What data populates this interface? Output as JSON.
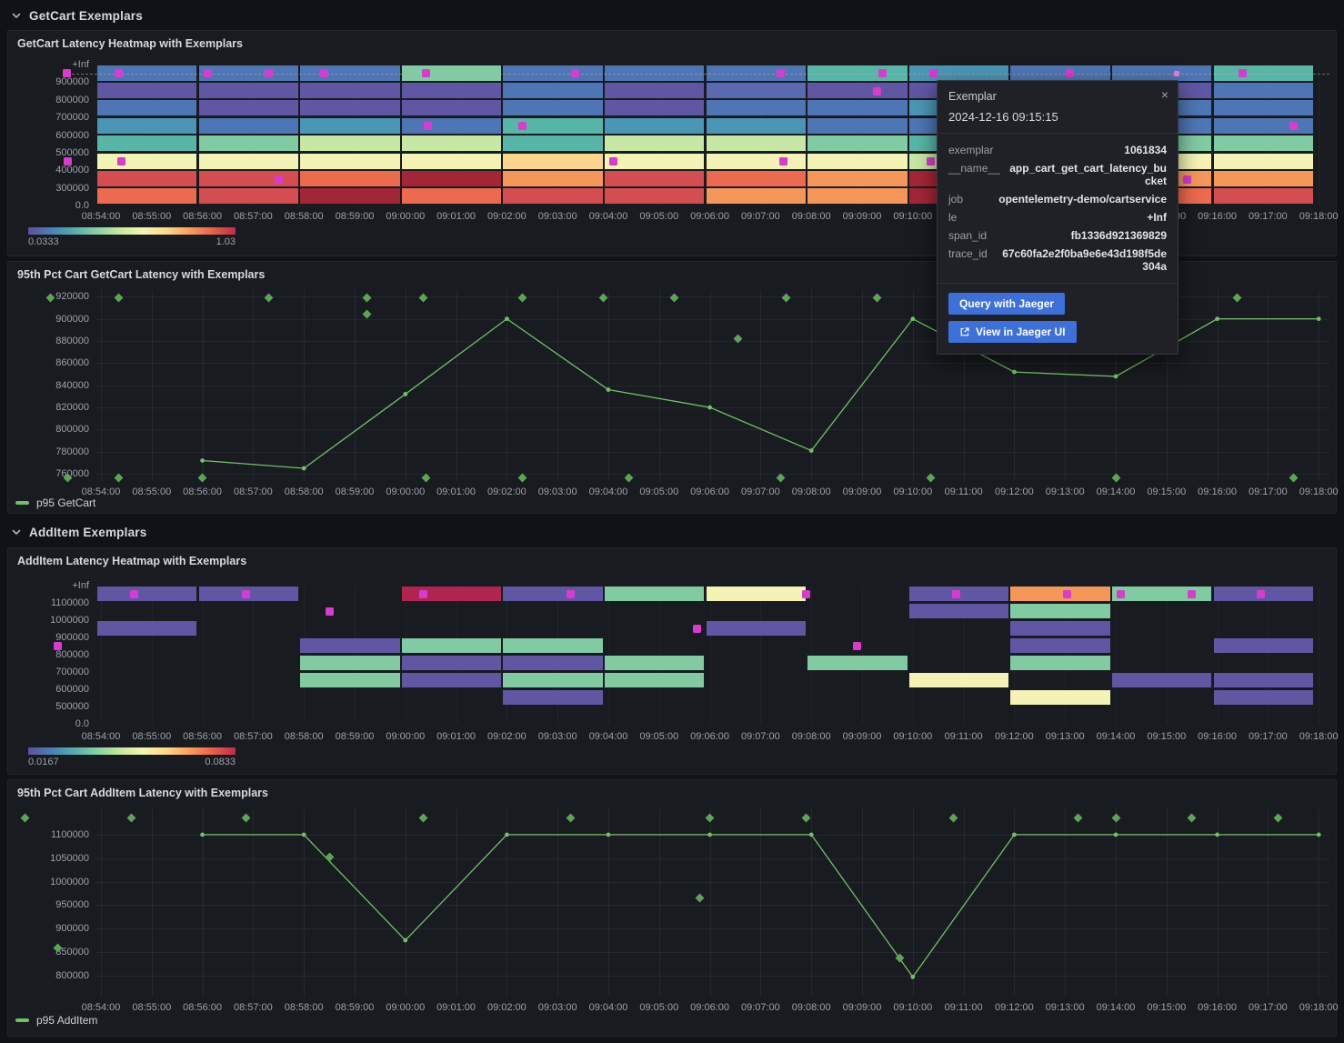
{
  "sections": [
    {
      "title": "GetCart Exemplars"
    },
    {
      "title": "AddItem Exemplars"
    }
  ],
  "tooltip": {
    "header": "Exemplar",
    "time": "2024-12-16 09:15:15",
    "close_label": "×",
    "fields": [
      {
        "label": "exemplar",
        "value": "1061834"
      },
      {
        "label": "__name__",
        "value": "app_cart_get_cart_latency_bucket"
      },
      {
        "label": "job",
        "value": "opentelemetry-demo/cartservice"
      },
      {
        "label": "le",
        "value": "+Inf"
      },
      {
        "label": "span_id",
        "value": "fb1336d921369829"
      },
      {
        "label": "trace_id",
        "value": "67c60fa2e2f0ba9e6e43d198f5de304a"
      }
    ],
    "buttons": [
      {
        "label": "Query with Jaeger",
        "icon": null
      },
      {
        "label": "View in Jaeger UI",
        "icon": "external-link"
      }
    ]
  },
  "palette": {
    "P": "#6057a4",
    "BP": "#5b68b2",
    "B": "#4e76b5",
    "TB": "#4b96b5",
    "T": "#58b6a8",
    "G": "#80cba2",
    "LG": "#c6e8a4",
    "PY": "#f4f3b6",
    "PC": "#fbd58c",
    "O": "#f6975a",
    "RO": "#ec6a4e",
    "R": "#d44d50",
    "DR": "#a32638",
    "CR": "#b22450",
    "exemplar": "#d93bce",
    "line_green": "#73bf69",
    "diamond_green": "#5ca554",
    "button_blue": "#3d71d9"
  },
  "chart_data": [
    {
      "type": "heatmap",
      "title": "GetCart Latency Heatmap with Exemplars",
      "x_tick_start": "08:54:00",
      "x_tick_count": 25,
      "x_tick_step_s": 60,
      "bucket_minutes": 2,
      "y_labels": [
        "+Inf",
        "900000",
        "800000",
        "700000",
        "600000",
        "500000",
        "400000",
        "300000",
        "0.0"
      ],
      "colorbar": {
        "min": "0.0333",
        "max": "1.03"
      },
      "dashed_line_row": 0,
      "columns": [
        {
          "start": "08:54",
          "cells": [
            "B",
            "P",
            "B",
            "TB",
            "T",
            "PY",
            "R",
            "RO"
          ]
        },
        {
          "start": "08:56",
          "cells": [
            "B",
            "P",
            "P",
            "B",
            "G",
            "PY",
            "R",
            "R"
          ]
        },
        {
          "start": "08:58",
          "cells": [
            "B",
            "P",
            "P",
            "TB",
            "LG",
            "PY",
            "RO",
            "DR"
          ]
        },
        {
          "start": "09:00",
          "cells": [
            "G",
            "P",
            "P",
            "B",
            "LG",
            "PY",
            "DR",
            "RO"
          ]
        },
        {
          "start": "09:02",
          "cells": [
            "B",
            "B",
            "B",
            "T",
            "T",
            "PC",
            "O",
            "R"
          ]
        },
        {
          "start": "09:04",
          "cells": [
            "B",
            "P",
            "P",
            "TB",
            "LG",
            "PY",
            "R",
            "R"
          ]
        },
        {
          "start": "09:06",
          "cells": [
            "B",
            "BP",
            "B",
            "TB",
            "LG",
            "PY",
            "RO",
            "O"
          ]
        },
        {
          "start": "09:08",
          "cells": [
            "T",
            "P",
            "B",
            "B",
            "G",
            "PY",
            "O",
            "O"
          ]
        },
        {
          "start": "09:10",
          "cells": [
            "TB",
            "P",
            "TB",
            "B",
            "T",
            "LG",
            "DR",
            "DR"
          ]
        },
        {
          "start": "09:12",
          "cells": [
            "B",
            "P",
            "B",
            "B",
            "T",
            "PY",
            "R",
            "R"
          ]
        },
        {
          "start": "09:14",
          "cells": [
            "B",
            "P",
            "B",
            "B",
            "G",
            "PY",
            "O",
            "RO"
          ]
        },
        {
          "start": "09:16",
          "cells": [
            "T",
            "B",
            "B",
            "B",
            "G",
            "PY",
            "O",
            "R"
          ]
        }
      ],
      "exemplars": [
        {
          "m": -0.68,
          "row": 0
        },
        {
          "m": 0.35,
          "row": 0
        },
        {
          "m": 2.1,
          "row": 0
        },
        {
          "m": 3.3,
          "row": 0
        },
        {
          "m": 4.4,
          "row": 0
        },
        {
          "m": 6.4,
          "row": 0
        },
        {
          "m": 9.35,
          "row": 0
        },
        {
          "m": 13.4,
          "row": 0
        },
        {
          "m": 15.4,
          "row": 0
        },
        {
          "m": 16.4,
          "row": 0
        },
        {
          "m": 19.1,
          "row": 0
        },
        {
          "m": 21.2,
          "row": 0,
          "small": true
        },
        {
          "m": 22.5,
          "row": 0
        },
        {
          "m": 15.3,
          "row": 1
        },
        {
          "m": 6.45,
          "row": 3
        },
        {
          "m": 8.3,
          "row": 3
        },
        {
          "m": 23.5,
          "row": 3
        },
        {
          "m": -0.65,
          "row": 5
        },
        {
          "m": 0.4,
          "row": 5
        },
        {
          "m": 10.1,
          "row": 5
        },
        {
          "m": 13.45,
          "row": 5
        },
        {
          "m": 16.35,
          "row": 5
        },
        {
          "m": 3.5,
          "row": 6
        },
        {
          "m": 21.4,
          "row": 6
        }
      ]
    },
    {
      "type": "line",
      "title": "95th Pct Cart GetCart Latency with Exemplars",
      "x_tick_start": "08:54:00",
      "x_tick_count": 25,
      "x_tick_step_s": 60,
      "y_ticks": [
        760000,
        780000,
        800000,
        820000,
        840000,
        860000,
        880000,
        900000,
        920000
      ],
      "ylim": [
        753500,
        926000
      ],
      "series": [
        {
          "name": "p95 GetCart",
          "color": "#73bf69",
          "points": [
            {
              "m": 2,
              "v": 772000
            },
            {
              "m": 4,
              "v": 765000
            },
            {
              "m": 6,
              "v": 832000
            },
            {
              "m": 8,
              "v": 900000
            },
            {
              "m": 10,
              "v": 836000
            },
            {
              "m": 12,
              "v": 820000
            },
            {
              "m": 14,
              "v": 781000
            },
            {
              "m": 16,
              "v": 900000
            },
            {
              "m": 18,
              "v": 852000
            },
            {
              "m": 20,
              "v": 848000
            },
            {
              "m": 22,
              "v": 900000
            },
            {
              "m": 24,
              "v": 900000
            }
          ]
        }
      ],
      "exemplars": [
        {
          "m": -1.0,
          "v": 919000
        },
        {
          "m": 0.35,
          "v": 919000
        },
        {
          "m": 3.3,
          "v": 919000
        },
        {
          "m": 5.25,
          "v": 919000
        },
        {
          "m": 6.35,
          "v": 919000
        },
        {
          "m": 8.3,
          "v": 919000
        },
        {
          "m": 9.9,
          "v": 919000
        },
        {
          "m": 11.3,
          "v": 919000
        },
        {
          "m": 13.5,
          "v": 919000
        },
        {
          "m": 15.3,
          "v": 919000
        },
        {
          "m": 17.5,
          "v": 919000
        },
        {
          "m": 21.0,
          "v": 919000
        },
        {
          "m": 22.4,
          "v": 919000
        },
        {
          "m": 5.25,
          "v": 904000
        },
        {
          "m": 12.55,
          "v": 882000
        },
        {
          "m": -0.65,
          "v": 756000
        },
        {
          "m": 0.35,
          "v": 756000
        },
        {
          "m": 2.0,
          "v": 756000
        },
        {
          "m": 6.4,
          "v": 756000
        },
        {
          "m": 8.3,
          "v": 756000
        },
        {
          "m": 10.4,
          "v": 756000
        },
        {
          "m": 13.4,
          "v": 756000
        },
        {
          "m": 16.35,
          "v": 756000
        },
        {
          "m": 20.0,
          "v": 756000
        },
        {
          "m": 23.5,
          "v": 756000
        }
      ]
    },
    {
      "type": "heatmap",
      "title": "AddItem Latency Heatmap with Exemplars",
      "x_tick_start": "08:54:00",
      "x_tick_count": 25,
      "x_tick_step_s": 60,
      "bucket_minutes": 2,
      "y_labels": [
        "+Inf",
        "1100000",
        "1000000",
        "900000",
        "800000",
        "700000",
        "600000",
        "500000",
        "0.0"
      ],
      "colorbar": {
        "min": "0.0167",
        "max": "0.0833"
      },
      "dashed_line_row": null,
      "columns": [
        {
          "start": "08:54",
          "cells": [
            "P",
            null,
            "P",
            null,
            null,
            null,
            null,
            null
          ]
        },
        {
          "start": "08:56",
          "cells": [
            "P",
            null,
            null,
            null,
            null,
            null,
            null,
            null
          ]
        },
        {
          "start": "08:58",
          "cells": [
            null,
            null,
            null,
            "P",
            "G",
            "G",
            null,
            null
          ]
        },
        {
          "start": "09:00",
          "cells": [
            "CR",
            null,
            null,
            "G",
            "P",
            "P",
            null,
            null
          ]
        },
        {
          "start": "09:02",
          "cells": [
            "P",
            null,
            null,
            "G",
            "P",
            "G",
            "P",
            null
          ]
        },
        {
          "start": "09:04",
          "cells": [
            "G",
            null,
            null,
            null,
            "G",
            "G",
            null,
            null
          ]
        },
        {
          "start": "09:06",
          "cells": [
            "PY",
            null,
            "P",
            null,
            null,
            null,
            null,
            null
          ]
        },
        {
          "start": "09:08",
          "cells": [
            null,
            null,
            null,
            null,
            "G",
            null,
            null,
            null
          ]
        },
        {
          "start": "09:10",
          "cells": [
            "P",
            "P",
            null,
            null,
            null,
            "PY",
            null,
            null
          ]
        },
        {
          "start": "09:12",
          "cells": [
            "O",
            "G",
            "P",
            "P",
            "G",
            null,
            "PY",
            null
          ]
        },
        {
          "start": "09:14",
          "cells": [
            "G",
            null,
            null,
            null,
            null,
            "P",
            null,
            null
          ]
        },
        {
          "start": "09:16",
          "cells": [
            "P",
            null,
            null,
            "P",
            null,
            "P",
            "P",
            null
          ]
        }
      ],
      "exemplars": [
        {
          "m": 0.65,
          "row": 0
        },
        {
          "m": 2.85,
          "row": 0
        },
        {
          "m": 6.35,
          "row": 0
        },
        {
          "m": 9.25,
          "row": 0
        },
        {
          "m": 13.9,
          "row": 0
        },
        {
          "m": 16.85,
          "row": 0
        },
        {
          "m": 19.05,
          "row": 0
        },
        {
          "m": 20.1,
          "row": 0
        },
        {
          "m": 21.5,
          "row": 0
        },
        {
          "m": 22.85,
          "row": 0
        },
        {
          "m": 4.5,
          "row": 1
        },
        {
          "m": 11.75,
          "row": 2
        },
        {
          "m": -0.85,
          "row": 3
        },
        {
          "m": 14.9,
          "row": 3
        }
      ]
    },
    {
      "type": "line",
      "title": "95th Pct Cart AddItem Latency with Exemplars",
      "x_tick_start": "08:54:00",
      "x_tick_count": 25,
      "x_tick_step_s": 60,
      "y_ticks": [
        800000,
        850000,
        900000,
        950000,
        1000000,
        1050000,
        1100000
      ],
      "ylim": [
        755000,
        1156000
      ],
      "series": [
        {
          "name": "p95 AddItem",
          "color": "#73bf69",
          "points": [
            {
              "m": 2,
              "v": 1100000
            },
            {
              "m": 4,
              "v": 1100000
            },
            {
              "m": 6,
              "v": 875000
            },
            {
              "m": 8,
              "v": 1100000
            },
            {
              "m": 10,
              "v": 1100000
            },
            {
              "m": 12,
              "v": 1100000
            },
            {
              "m": 14,
              "v": 1100000
            },
            {
              "m": 16,
              "v": 797000
            },
            {
              "m": 18,
              "v": 1100000
            },
            {
              "m": 20,
              "v": 1100000
            },
            {
              "m": 22,
              "v": 1100000
            },
            {
              "m": 24,
              "v": 1100000
            }
          ]
        }
      ],
      "exemplars": [
        {
          "m": -1.5,
          "v": 1135000
        },
        {
          "m": 0.6,
          "v": 1135000
        },
        {
          "m": 2.85,
          "v": 1135000
        },
        {
          "m": 6.35,
          "v": 1135000
        },
        {
          "m": 9.25,
          "v": 1135000
        },
        {
          "m": 12.0,
          "v": 1135000
        },
        {
          "m": 13.9,
          "v": 1135000
        },
        {
          "m": 16.8,
          "v": 1135000
        },
        {
          "m": 19.25,
          "v": 1135000
        },
        {
          "m": 20.0,
          "v": 1135000
        },
        {
          "m": 21.5,
          "v": 1135000
        },
        {
          "m": 23.2,
          "v": 1135000
        },
        {
          "m": -0.85,
          "v": 858000
        },
        {
          "m": 4.5,
          "v": 1053000
        },
        {
          "m": 11.8,
          "v": 965000
        },
        {
          "m": 15.75,
          "v": 838000
        }
      ]
    }
  ]
}
